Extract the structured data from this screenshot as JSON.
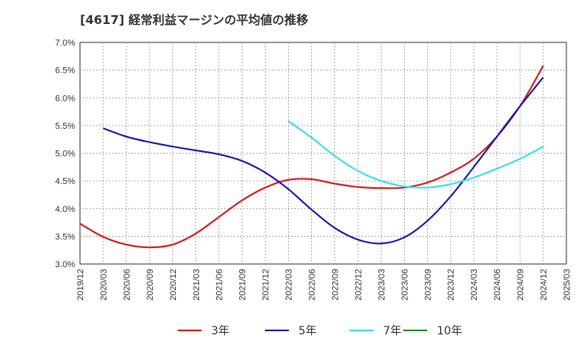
{
  "chart_data": {
    "type": "line",
    "title": "[4617]  経常利益マージンの平均値の推移",
    "xlabel": "",
    "ylabel": "",
    "x_ticks": [
      "2019/12",
      "2020/03",
      "2020/06",
      "2020/09",
      "2020/12",
      "2021/03",
      "2021/06",
      "2021/09",
      "2021/12",
      "2022/03",
      "2022/06",
      "2022/09",
      "2022/12",
      "2023/03",
      "2023/06",
      "2023/09",
      "2023/12",
      "2024/03",
      "2024/06",
      "2024/09",
      "2024/12",
      "2025/03"
    ],
    "y_ticks": [
      "3.0%",
      "3.5%",
      "4.0%",
      "4.5%",
      "5.0%",
      "5.5%",
      "6.0%",
      "6.5%",
      "7.0%"
    ],
    "ylim": [
      3.0,
      7.0
    ],
    "grid": true,
    "legend_position": "bottom",
    "series": [
      {
        "name": "3年",
        "color": "#dd1111",
        "x": [
          "2019/12",
          "2020/03",
          "2020/06",
          "2020/09",
          "2020/12",
          "2021/03",
          "2021/06",
          "2021/09",
          "2021/12",
          "2022/03",
          "2022/06",
          "2022/09",
          "2022/12",
          "2023/03",
          "2023/06",
          "2023/09",
          "2023/12",
          "2024/03",
          "2024/06",
          "2024/09",
          "2024/12"
        ],
        "values": [
          3.73,
          3.49,
          3.35,
          3.3,
          3.35,
          3.55,
          3.85,
          4.15,
          4.38,
          4.52,
          4.53,
          4.45,
          4.39,
          4.37,
          4.38,
          4.47,
          4.65,
          4.9,
          5.3,
          5.85,
          6.58
        ]
      },
      {
        "name": "5年",
        "color": "#1111bb",
        "x": [
          "2020/03",
          "2020/06",
          "2020/09",
          "2020/12",
          "2021/03",
          "2021/06",
          "2021/09",
          "2021/12",
          "2022/03",
          "2022/06",
          "2022/09",
          "2022/12",
          "2023/03",
          "2023/06",
          "2023/09",
          "2023/12",
          "2024/03",
          "2024/06",
          "2024/09",
          "2024/12"
        ],
        "values": [
          5.45,
          5.3,
          5.2,
          5.12,
          5.05,
          4.98,
          4.86,
          4.65,
          4.35,
          3.98,
          3.65,
          3.44,
          3.37,
          3.48,
          3.78,
          4.22,
          4.75,
          5.3,
          5.85,
          6.37
        ]
      },
      {
        "name": "7年",
        "color": "#33e0e8",
        "x": [
          "2022/03",
          "2022/06",
          "2022/09",
          "2022/12",
          "2023/03",
          "2023/06",
          "2023/09",
          "2023/12",
          "2024/03",
          "2024/06",
          "2024/09",
          "2024/12"
        ],
        "values": [
          5.58,
          5.28,
          4.95,
          4.68,
          4.5,
          4.4,
          4.38,
          4.44,
          4.56,
          4.72,
          4.9,
          5.12
        ]
      },
      {
        "name": "10年",
        "color": "#228822",
        "x": [],
        "values": []
      }
    ]
  }
}
